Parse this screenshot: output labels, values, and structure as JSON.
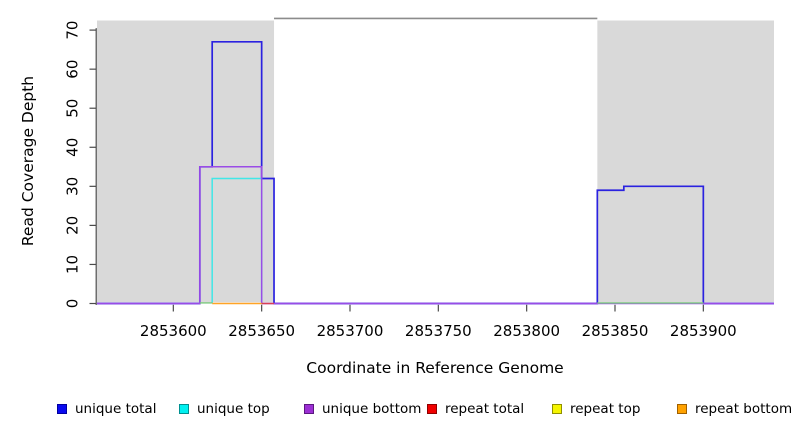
{
  "chart_data": {
    "type": "line",
    "subtype": "step-coverage",
    "title": "",
    "xlabel": "Coordinate in Reference Genome",
    "ylabel": "Read Coverage Depth",
    "xlim": [
      2853556.8,
      2853940
    ],
    "ylim": [
      0,
      73.1
    ],
    "xticks": [
      2853600,
      2853650,
      2853700,
      2853750,
      2853800,
      2853850,
      2853900
    ],
    "yticks": [
      0,
      10,
      20,
      30,
      40,
      50,
      60,
      70
    ],
    "grid": false,
    "plot_bg": "#ffffff",
    "axis_color": "#4a4a4a",
    "tick_label_color": "#000000",
    "shaded_regions": [
      {
        "x0": 2853556.8,
        "x1": 2853657,
        "color": "#d9d9d9"
      },
      {
        "x0": 2853840,
        "x1": 2853940,
        "color": "#d9d9d9"
      }
    ],
    "clipped_top_line": {
      "x0": 2853657,
      "x1": 2853840,
      "value": 73.0,
      "color": "#8c8c8c"
    },
    "series": [
      {
        "name": "unique total",
        "line_color": "#2b22e0",
        "x_start": 2853556.8,
        "steps": [
          [
            2853615,
            35
          ],
          [
            2853622,
            67
          ],
          [
            2853650,
            32
          ],
          [
            2853657,
            0
          ],
          [
            2853840,
            29
          ],
          [
            2853855,
            30
          ],
          [
            2853900,
            0
          ]
        ],
        "x_end": 2853940
      },
      {
        "name": "unique top",
        "line_color": "#41e7e7",
        "x_start": 2853622,
        "steps": [
          [
            2853622,
            32
          ],
          [
            2853650,
            0
          ]
        ],
        "x_end": 2853650
      },
      {
        "name": "unique bottom",
        "line_color": "#9a4ce6",
        "x_start": 2853556.8,
        "steps": [
          [
            2853615,
            35
          ],
          [
            2853650,
            0
          ]
        ],
        "x_end": 2853940
      },
      {
        "name": "repeat total",
        "line_color": "#d94055",
        "x_start": 2853650,
        "steps": [],
        "x_end": 2853657
      },
      {
        "name": "repeat top",
        "line_color": "#f5f500",
        "x_start": null,
        "steps": [],
        "x_end": null
      },
      {
        "name": "repeat bottom",
        "line_color": "#ffa426",
        "x_start": 2853622,
        "steps": [],
        "x_end": 2853650
      }
    ],
    "overlap_zero_segments": [
      {
        "x0": 2853615,
        "x1": 2853622,
        "color": "#7cc87f"
      },
      {
        "x0": 2853840,
        "x1": 2853900,
        "color": "#7cc87f"
      }
    ],
    "legend": {
      "position": "bottom",
      "items": [
        {
          "label": "unique total",
          "fill": "#0a0af0",
          "border": "#0000a0"
        },
        {
          "label": "unique top",
          "fill": "#00f0f0",
          "border": "#009090"
        },
        {
          "label": "unique bottom",
          "fill": "#9c2fd4",
          "border": "#5c1880"
        },
        {
          "label": "repeat total",
          "fill": "#f00000",
          "border": "#900000"
        },
        {
          "label": "repeat top",
          "fill": "#f5f500",
          "border": "#909000"
        },
        {
          "label": "repeat bottom",
          "fill": "#ffa200",
          "border": "#a06000"
        }
      ]
    }
  }
}
